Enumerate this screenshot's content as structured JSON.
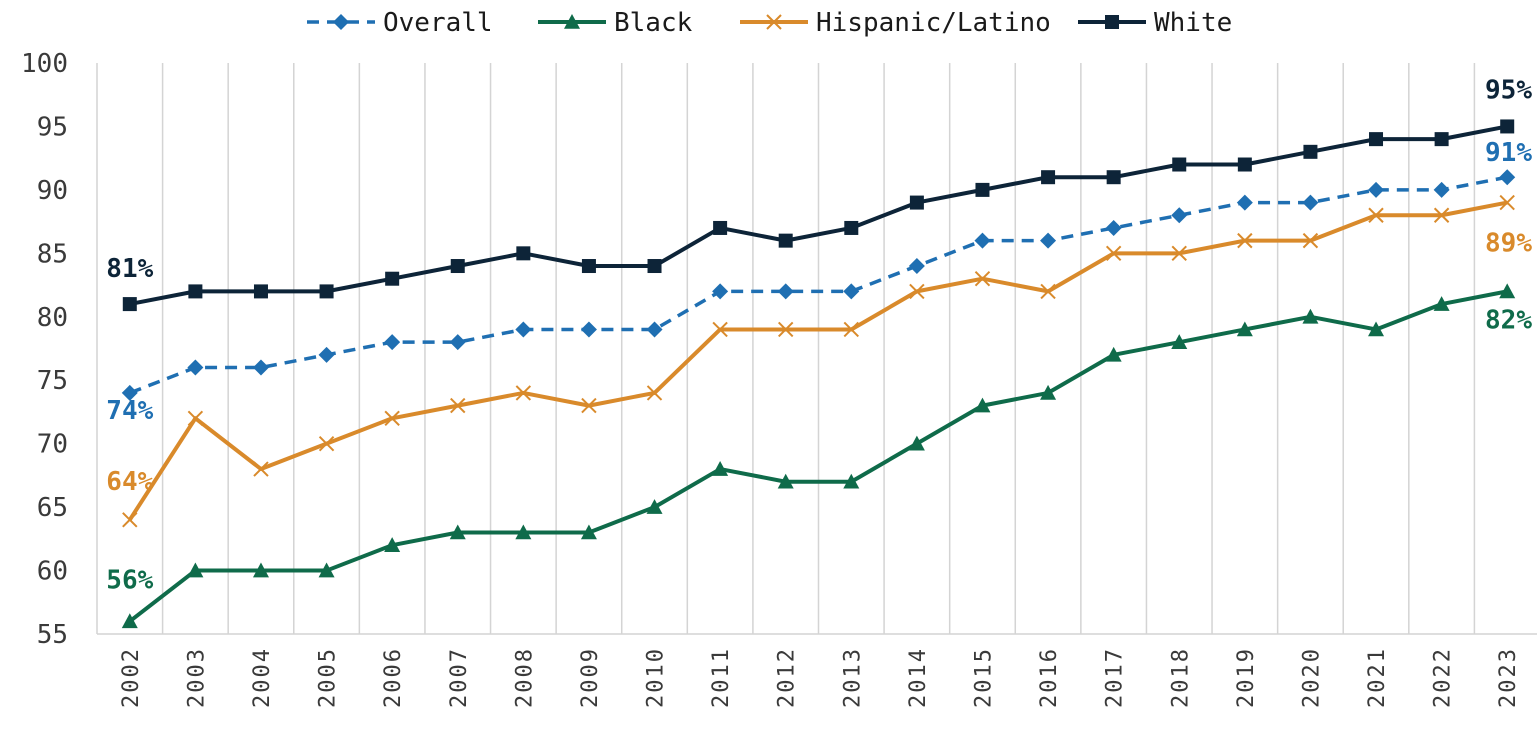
{
  "chart_data": {
    "type": "line",
    "title": "",
    "xlabel": "",
    "ylabel": "",
    "categories": [
      "2002",
      "2003",
      "2004",
      "2005",
      "2006",
      "2007",
      "2008",
      "2009",
      "2010",
      "2011",
      "2012",
      "2013",
      "2014",
      "2015",
      "2016",
      "2017",
      "2018",
      "2019",
      "2020",
      "2021",
      "2022",
      "2023"
    ],
    "ylim": [
      55,
      100
    ],
    "yticks": [
      "55",
      "60",
      "65",
      "70",
      "75",
      "80",
      "85",
      "90",
      "95",
      "100"
    ],
    "grid": "vertical",
    "legend_position": "top",
    "series": [
      {
        "name": "Overall",
        "color": "#1f6fb2",
        "marker": "diamond",
        "line_style": "dashed",
        "values": [
          74,
          76,
          76,
          77,
          78,
          78,
          79,
          79,
          79,
          82,
          82,
          82,
          84,
          86,
          86,
          87,
          88,
          89,
          89,
          90,
          90,
          91
        ],
        "start_label": "74%",
        "end_label": "91%"
      },
      {
        "name": "Black",
        "color": "#0f6b4a",
        "marker": "triangle",
        "line_style": "solid",
        "values": [
          56,
          60,
          60,
          60,
          62,
          63,
          63,
          63,
          65,
          68,
          67,
          67,
          70,
          73,
          74,
          77,
          78,
          79,
          80,
          79,
          81,
          82
        ],
        "start_label": "56%",
        "end_label": "82%"
      },
      {
        "name": "Hispanic/Latino",
        "color": "#d98a2b",
        "marker": "x",
        "line_style": "solid",
        "values": [
          64,
          72,
          68,
          70,
          72,
          73,
          74,
          73,
          74,
          79,
          79,
          79,
          82,
          83,
          82,
          85,
          85,
          86,
          86,
          88,
          88,
          89
        ],
        "start_label": "64%",
        "end_label": "89%"
      },
      {
        "name": "White",
        "color": "#0d2438",
        "marker": "square",
        "line_style": "solid",
        "values": [
          81,
          82,
          82,
          82,
          83,
          84,
          85,
          84,
          84,
          87,
          86,
          87,
          89,
          90,
          91,
          91,
          92,
          92,
          93,
          94,
          94,
          95
        ],
        "start_label": "81%",
        "end_label": "95%"
      }
    ]
  }
}
